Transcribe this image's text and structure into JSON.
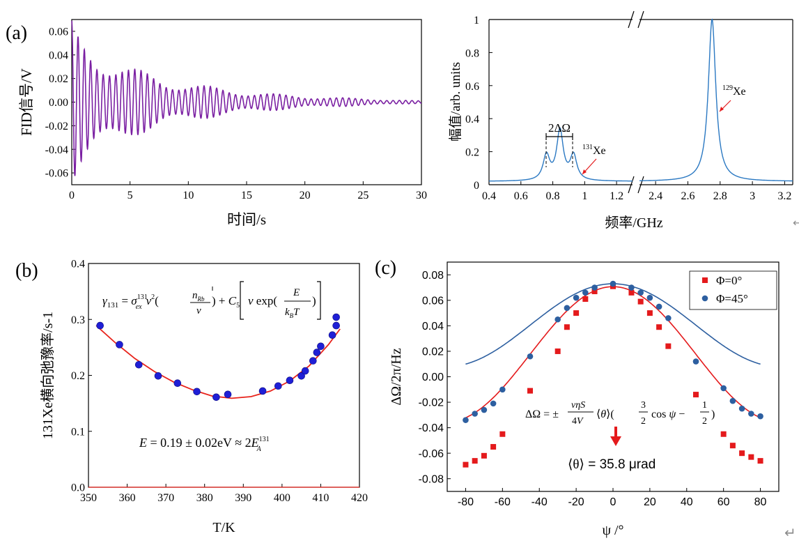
{
  "panel_labels": {
    "a": "(a)",
    "b": "(b)",
    "c": "(c)"
  },
  "return_marks": [
    "↵",
    "↵"
  ],
  "annotations": {
    "b_formula": "γ131 = σex131 v̄² (nRb / v̄) + C5 [ v̄ exp( Ē / (kB T) ) ]",
    "b_energy": "Ē = 0.19 ± 0.02eV ≈ 2EA131",
    "c_formula": "ΔΩ = ± vηS/(4V) ⟨θ⟩ ( 3/2 cos ψ − 1/2 )",
    "c_theta": "⟨θ⟩ = 35.8 μrad",
    "c_theta_parts": {
      "angle": "⟨θ⟩",
      "rest": " = 35.8 μrad"
    },
    "a2_split": "2ΔΩ",
    "a2_xe131": "131Xe",
    "a2_xe129": "129Xe",
    "a2_iso": {
      "xe131_sup": "131",
      "xe129_sup": "129",
      "xe": "Xe"
    }
  },
  "chart_data": [
    {
      "id": "a1",
      "type": "line",
      "title": "",
      "xlabel": "时间/s",
      "ylabel": "FID信号/V",
      "xlim": [
        0,
        30
      ],
      "ylim": [
        -0.07,
        0.07
      ],
      "xticks": [
        "0",
        "5",
        "10",
        "15",
        "20",
        "25",
        "30"
      ],
      "yticks": [
        "-0.06",
        "-0.04",
        "-0.02",
        "0.00",
        "0.02",
        "0.04",
        "0.06"
      ],
      "series": [
        {
          "color": "#7a1fa2",
          "description": "damped oscillating FID signal",
          "x": [
            0,
            0.5,
            1,
            2,
            3,
            5,
            8,
            10,
            15,
            20,
            25,
            30
          ],
          "y_envelope": [
            0.069,
            0.058,
            0.052,
            0.044,
            0.04,
            0.03,
            0.02,
            0.016,
            0.009,
            0.005,
            0.003,
            0.001
          ]
        }
      ]
    },
    {
      "id": "a2",
      "type": "line",
      "title": "",
      "xlabel": "频率/GHz",
      "ylabel": "幅值/arb. units",
      "xlim_left": [
        0.4,
        1.3
      ],
      "xlim_right": [
        2.3,
        3.25
      ],
      "ylim": [
        0,
        1
      ],
      "xticks": [
        "0.4",
        "0.6",
        "0.8",
        "1",
        "1.2",
        "2.4",
        "2.6",
        "2.8",
        "3",
        "3.2"
      ],
      "yticks": [
        "0",
        "0.2",
        "0.4",
        "0.6",
        "0.8",
        "1"
      ],
      "series": [
        {
          "color": "#2a78c2",
          "description": "spectrum with 131Xe triplet and 129Xe peak",
          "peaks": [
            {
              "center": 0.76,
              "height": 0.15
            },
            {
              "center": 0.845,
              "height": 0.3
            },
            {
              "center": 0.93,
              "height": 0.15
            },
            {
              "center": 2.75,
              "height": 0.98
            }
          ],
          "baseline": 0.02
        }
      ]
    },
    {
      "id": "b",
      "type": "scatter",
      "title": "",
      "xlabel": "T/K",
      "ylabel": "131Xe横向弛豫率/s-1",
      "xlim": [
        350,
        420
      ],
      "ylim": [
        0,
        0.4
      ],
      "xticks": [
        "350",
        "360",
        "370",
        "380",
        "390",
        "400",
        "410",
        "420"
      ],
      "yticks": [
        "0.0",
        "0.1",
        "0.2",
        "0.3",
        "0.4"
      ],
      "series": [
        {
          "color": "#1f1fd6",
          "x": [
            353,
            358,
            363,
            368,
            373,
            378,
            383,
            386,
            395,
            399,
            402,
            405,
            406,
            408,
            409,
            410,
            413,
            414,
            414
          ],
          "y": [
            0.289,
            0.255,
            0.219,
            0.199,
            0.186,
            0.171,
            0.161,
            0.166,
            0.172,
            0.181,
            0.191,
            0.199,
            0.208,
            0.226,
            0.241,
            0.252,
            0.272,
            0.289,
            0.304
          ]
        },
        {
          "color": "#e8231b",
          "description": "fit curve",
          "x": [
            352,
            357,
            362,
            367,
            372,
            377,
            382,
            387,
            392,
            397,
            402,
            407,
            412,
            415
          ],
          "y": [
            0.289,
            0.258,
            0.23,
            0.207,
            0.188,
            0.174,
            0.163,
            0.159,
            0.162,
            0.172,
            0.19,
            0.217,
            0.255,
            0.283
          ]
        }
      ]
    },
    {
      "id": "c",
      "type": "scatter",
      "title": "",
      "xlabel": "ψ /°",
      "ylabel": "ΔΩ/2π/Hz",
      "xlim": [
        -90,
        90
      ],
      "ylim": [
        -0.09,
        0.09
      ],
      "xticks": [
        "-80",
        "-60",
        "-40",
        "-20",
        "0",
        "20",
        "40",
        "60",
        "80"
      ],
      "yticks": [
        "-0.08",
        "-0.06",
        "-0.04",
        "-0.02",
        "0.00",
        "0.02",
        "0.04",
        "0.06",
        "0.08"
      ],
      "legend": {
        "placement": "top-right",
        "entries": [
          "Φ=0°",
          "Φ=45°"
        ]
      },
      "series": [
        {
          "name": "Φ=0°",
          "color": "#e41a1c",
          "marker": "square",
          "x": [
            -80,
            -75,
            -70,
            -65,
            -60,
            -45,
            -30,
            -25,
            -20,
            -15,
            -10,
            0,
            10,
            15,
            20,
            25,
            30,
            45,
            60,
            65,
            70,
            75,
            80
          ],
          "y": [
            -0.069,
            -0.066,
            -0.062,
            -0.055,
            -0.045,
            -0.011,
            0.02,
            0.039,
            0.05,
            0.061,
            0.067,
            0.071,
            0.066,
            0.059,
            0.05,
            0.039,
            0.024,
            -0.014,
            -0.045,
            -0.054,
            -0.06,
            -0.063,
            -0.066
          ]
        },
        {
          "name": "Φ=45°",
          "color": "#2d5fa0",
          "marker": "circle",
          "x": [
            -80,
            -75,
            -70,
            -65,
            -60,
            -45,
            -30,
            -25,
            -20,
            -15,
            -10,
            0,
            10,
            15,
            20,
            25,
            30,
            45,
            60,
            65,
            70,
            75,
            80
          ],
          "y": [
            -0.034,
            -0.029,
            -0.026,
            -0.021,
            -0.01,
            0.016,
            0.045,
            0.054,
            0.062,
            0.066,
            0.07,
            0.073,
            0.07,
            0.066,
            0.062,
            0.055,
            0.046,
            0.012,
            -0.009,
            -0.019,
            -0.025,
            -0.029,
            -0.031
          ]
        }
      ]
    }
  ]
}
